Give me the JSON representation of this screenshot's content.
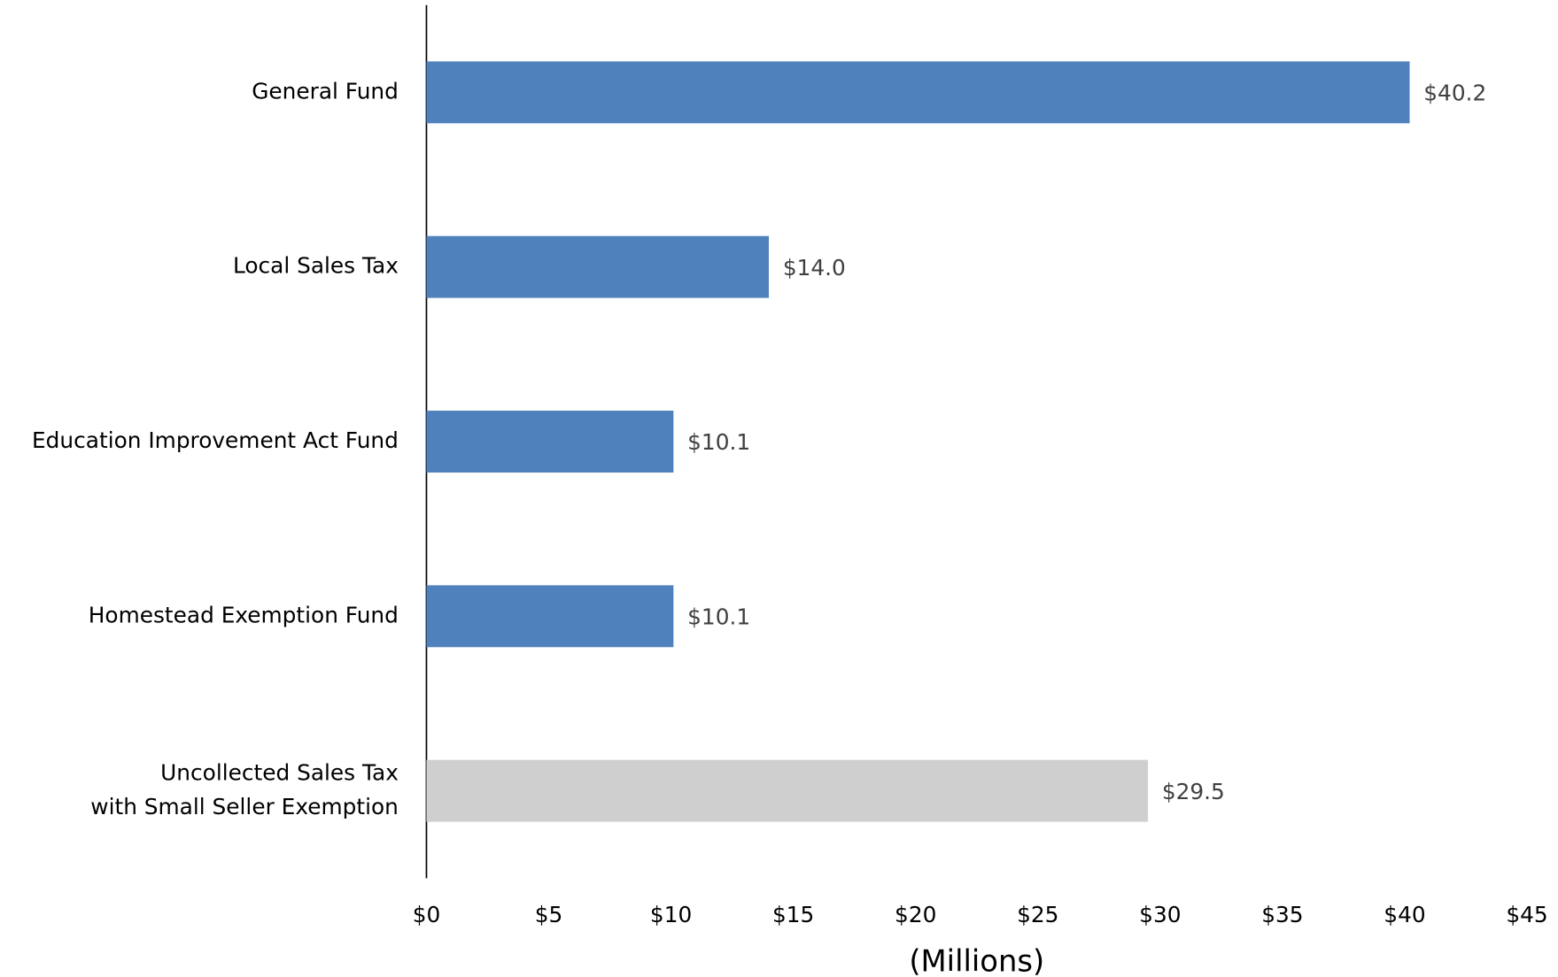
{
  "chart_data": {
    "type": "hbar",
    "categories": [
      "General Fund",
      "Local Sales Tax",
      "Education Improvement Act Fund",
      "Homestead Exemption Fund",
      "Uncollected Sales Tax\nwith Small Seller Exemption"
    ],
    "values": [
      40.2,
      14.0,
      10.1,
      10.1,
      29.5
    ],
    "value_labels": [
      "$40.2",
      "$14.0",
      "$10.1",
      "$10.1",
      "$29.5"
    ],
    "colors": [
      "#4f81bd",
      "#4f81bd",
      "#4f81bd",
      "#4f81bd",
      "#d0cfcf"
    ],
    "xlabel": "(Millions)",
    "xlim": [
      0,
      45
    ],
    "xticks": [
      {
        "value": 0,
        "label": "$0"
      },
      {
        "value": 5,
        "label": "$5"
      },
      {
        "value": 10,
        "label": "$10"
      },
      {
        "value": 15,
        "label": "$15"
      },
      {
        "value": 20,
        "label": "$20"
      },
      {
        "value": 25,
        "label": "$25"
      },
      {
        "value": 30,
        "label": "$30"
      },
      {
        "value": 35,
        "label": "$35"
      },
      {
        "value": 40,
        "label": "$40"
      },
      {
        "value": 45,
        "label": "$45"
      }
    ],
    "grid": false
  }
}
